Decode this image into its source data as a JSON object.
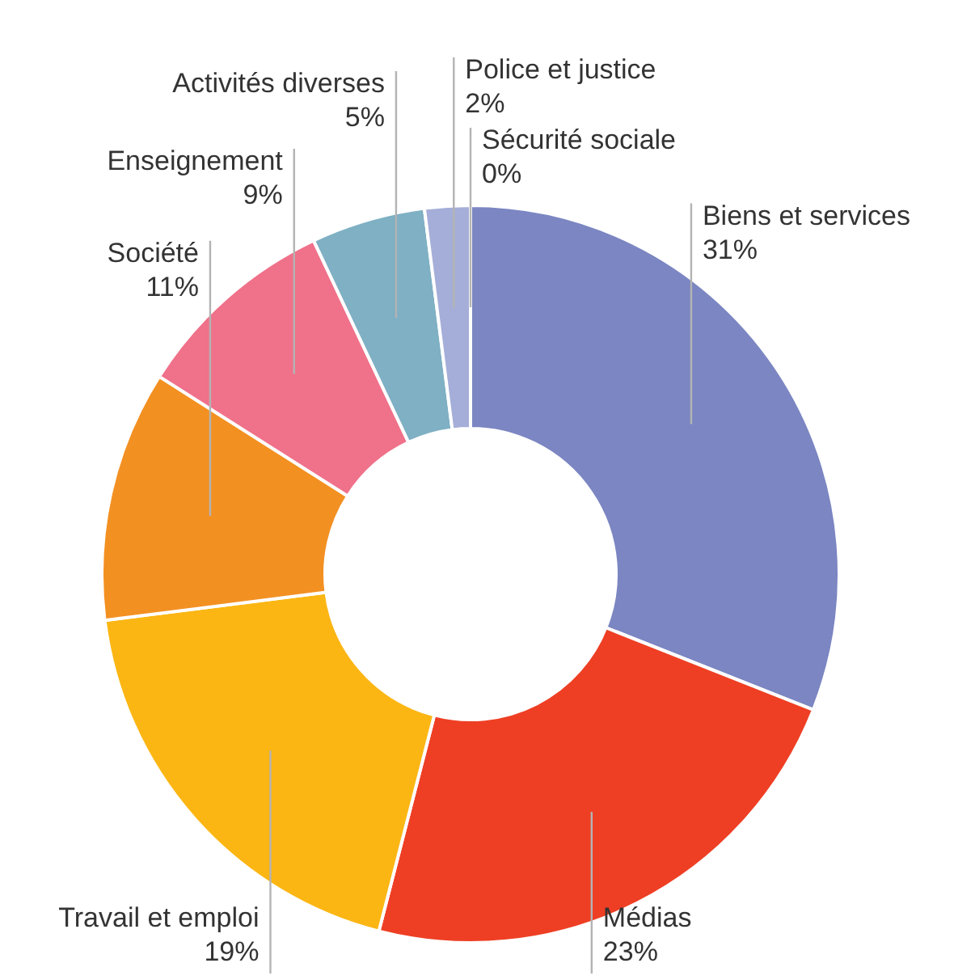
{
  "chart_data": {
    "type": "donut",
    "categories": [
      "Biens et services",
      "Médias",
      "Travail et emploi",
      "Société",
      "Enseignement",
      "Activités diverses",
      "Police et justice",
      "Sécurité sociale"
    ],
    "values": [
      31,
      23,
      19,
      11,
      9,
      5,
      2,
      0
    ],
    "colors": [
      "#7b86c2",
      "#ee3f24",
      "#fbb614",
      "#f39022",
      "#f0718a",
      "#7fb0c4",
      "#a5aed8",
      "#c7cde8"
    ],
    "value_labels": [
      "31%",
      "23%",
      "19%",
      "11%",
      "9%",
      "5%",
      "2%",
      "0%"
    ]
  }
}
